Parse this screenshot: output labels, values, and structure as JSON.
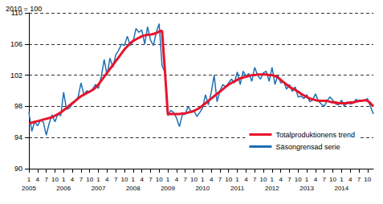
{
  "chart_data": {
    "type": "line",
    "subtitle": "2010 = 100",
    "categories": [
      "1\n2005",
      null,
      null,
      "4",
      null,
      null,
      "7",
      null,
      null,
      "10",
      null,
      null,
      "1\n2006",
      null,
      null,
      "4",
      null,
      null,
      "7",
      null,
      null,
      "10",
      null,
      null,
      "1\n2007",
      null,
      null,
      "4",
      null,
      null,
      "7",
      null,
      null,
      "10",
      null,
      null,
      "1\n2008",
      null,
      null,
      "4",
      null,
      null,
      "7",
      null,
      null,
      "10",
      null,
      null,
      "1\n2009",
      null,
      null,
      "4",
      null,
      null,
      "7",
      null,
      null,
      "10",
      null,
      null,
      "1\n2010",
      null,
      null,
      "4",
      null,
      null,
      "7",
      null,
      null,
      "10",
      null,
      null,
      "1\n2011",
      null,
      null,
      "4",
      null,
      null,
      "7",
      null,
      null,
      "10",
      null,
      null,
      "1\n2012",
      null,
      null,
      "4",
      null,
      null,
      "7",
      null,
      null,
      "10",
      null,
      null,
      "1\n2013",
      null,
      null,
      "4",
      null,
      null,
      "7",
      null,
      null,
      "10",
      null,
      null,
      "1\n2014",
      null,
      null,
      "4",
      null,
      null,
      "7",
      null,
      null,
      "10",
      null,
      null
    ],
    "series": [
      {
        "name": "Totalproduktionens trend",
        "color": "#e8142b",
        "values": [
          95.8,
          95.9,
          96.0,
          96.1,
          96.2,
          96.3,
          96.4,
          96.5,
          96.6,
          96.8,
          97.0,
          97.2,
          97.5,
          97.8,
          98.1,
          98.4,
          98.7,
          99.0,
          99.3,
          99.5,
          99.7,
          99.9,
          100.1,
          100.4,
          100.8,
          101.3,
          101.8,
          102.3,
          102.8,
          103.3,
          103.8,
          104.3,
          104.8,
          105.3,
          105.7,
          106.1,
          106.4,
          106.6,
          106.8,
          107.0,
          107.1,
          107.2,
          107.2,
          107.3,
          107.4,
          107.6,
          107.7,
          102.5,
          97.0,
          97.0,
          97.0,
          97.0,
          97.0,
          97.1,
          97.1,
          97.2,
          97.3,
          97.4,
          97.6,
          97.8,
          98.1,
          98.4,
          98.7,
          99.0,
          99.3,
          99.6,
          99.9,
          100.2,
          100.5,
          100.8,
          101.0,
          101.2,
          101.4,
          101.6,
          101.7,
          101.8,
          101.9,
          102.0,
          102.0,
          102.1,
          102.1,
          102.1,
          102.1,
          102.0,
          102.0,
          101.9,
          101.7,
          101.4,
          101.1,
          100.8,
          100.5,
          100.3,
          100.1,
          99.9,
          99.6,
          99.4,
          99.2,
          99.0,
          98.9,
          98.8,
          98.7,
          98.7,
          98.7,
          98.7,
          98.6,
          98.5,
          98.5,
          98.4,
          98.4,
          98.4,
          98.4,
          98.5,
          98.5,
          98.6,
          98.7,
          98.7,
          98.8,
          98.7,
          98.4,
          98.0
        ]
      },
      {
        "name": "Säsongrensad serie",
        "color": "#1f6fb2",
        "values": [
          97.2,
          94.8,
          96.0,
          95.5,
          96.2,
          96.0,
          94.3,
          95.8,
          96.9,
          96.0,
          97.0,
          96.8,
          99.8,
          97.6,
          97.8,
          98.3,
          98.6,
          99.2,
          101.0,
          99.5,
          100.0,
          99.8,
          100.2,
          100.8,
          100.3,
          101.8,
          104.0,
          102.0,
          104.2,
          103.0,
          104.6,
          105.2,
          106.0,
          105.8,
          107.0,
          105.8,
          106.3,
          108.0,
          107.5,
          107.8,
          106.0,
          108.2,
          106.5,
          105.8,
          107.5,
          108.6,
          103.2,
          102.4,
          96.8,
          97.5,
          97.2,
          96.5,
          95.4,
          96.9,
          97.0,
          98.0,
          97.3,
          97.5,
          96.7,
          97.2,
          97.8,
          99.5,
          98.2,
          99.8,
          102.0,
          98.6,
          100.0,
          100.8,
          100.5,
          101.0,
          101.5,
          101.0,
          102.4,
          100.8,
          102.5,
          101.9,
          102.2,
          101.2,
          103.0,
          102.0,
          101.5,
          102.3,
          102.5,
          101.2,
          103.0,
          100.8,
          102.0,
          101.0,
          101.2,
          100.2,
          100.8,
          99.9,
          100.5,
          99.2,
          99.3,
          99.0,
          99.5,
          98.6,
          98.8,
          99.6,
          98.7,
          98.3,
          98.0,
          98.7,
          99.2,
          98.8,
          98.3,
          98.2,
          98.8,
          98.0,
          98.6,
          98.3,
          98.4,
          98.9,
          98.6,
          98.8,
          98.7,
          99.0,
          98.0,
          97.0
        ]
      }
    ],
    "ylim": [
      90,
      110
    ],
    "yticks": [
      90,
      94,
      98,
      102,
      106,
      110
    ],
    "grid": true,
    "legend": "lower right"
  }
}
